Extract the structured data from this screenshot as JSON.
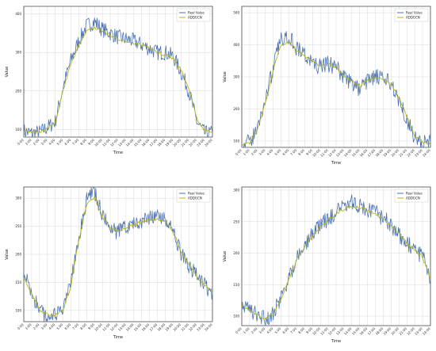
{
  "chart_data": [
    {
      "type": "line",
      "xlabel": "Time",
      "ylabel": "Value",
      "ylim": [
        80,
        420
      ],
      "yticks": [
        100,
        200,
        300,
        400
      ],
      "xticks": [
        "0:00",
        "1:00",
        "2:00",
        "3:00",
        "4:00",
        "5:00",
        "6:00",
        "7:00",
        "8:00",
        "9:00",
        "10:00",
        "11:00",
        "12:00",
        "13:00",
        "14:00",
        "15:00",
        "16:00",
        "17:00",
        "18:00",
        "19:00",
        "20:00",
        "21:00",
        "22:00",
        "23:00",
        "24:00"
      ],
      "grid": true,
      "legend_position": "top-right",
      "series": [
        {
          "name": "Real Value",
          "values": [
            95,
            90,
            92,
            105,
            120,
            210,
            280,
            330,
            370,
            380,
            360,
            350,
            340,
            335,
            330,
            320,
            310,
            300,
            300,
            290,
            250,
            200,
            120,
            90,
            90
          ]
        },
        {
          "name": "ADDGCN",
          "values": [
            95,
            92,
            93,
            102,
            115,
            200,
            270,
            320,
            355,
            365,
            355,
            345,
            335,
            330,
            325,
            318,
            310,
            300,
            295,
            285,
            255,
            205,
            130,
            95,
            92
          ]
        }
      ]
    },
    {
      "type": "line",
      "xlabel": "Time",
      "ylabel": "Value",
      "ylim": [
        80,
        520
      ],
      "yticks": [
        100,
        200,
        300,
        400,
        500
      ],
      "xticks": [
        "0:00",
        "1:00",
        "2:00",
        "3:00",
        "4:00",
        "5:00",
        "6:00",
        "7:00",
        "8:00",
        "9:00",
        "10:00",
        "11:00",
        "12:00",
        "13:00",
        "14:00",
        "15:00",
        "16:00",
        "17:00",
        "18:00",
        "19:00",
        "20:00",
        "21:00",
        "22:00",
        "23:00",
        "24:00"
      ],
      "grid": true,
      "legend_position": "top-right",
      "series": [
        {
          "name": "Real Value",
          "values": [
            90,
            95,
            140,
            230,
            330,
            420,
            430,
            390,
            370,
            340,
            330,
            340,
            330,
            300,
            280,
            260,
            290,
            300,
            290,
            280,
            230,
            170,
            110,
            95,
            95
          ]
        },
        {
          "name": "ADDGCN",
          "values": [
            90,
            95,
            135,
            220,
            320,
            400,
            410,
            385,
            365,
            345,
            335,
            340,
            330,
            305,
            285,
            270,
            290,
            300,
            290,
            275,
            235,
            175,
            115,
            95,
            95
          ]
        }
      ]
    },
    {
      "type": "line",
      "xlabel": "Time",
      "ylabel": "Value",
      "ylim": [
        80,
        320
      ],
      "yticks": [
        100,
        150,
        200,
        250,
        300
      ],
      "xticks": [
        "0:00",
        "1:00",
        "2:00",
        "3:00",
        "4:00",
        "5:00",
        "6:00",
        "7:00",
        "8:00",
        "9:00",
        "10:00",
        "11:00",
        "12:00",
        "13:00",
        "14:00",
        "15:00",
        "16:00",
        "17:00",
        "18:00",
        "19:00",
        "20:00",
        "21:00",
        "22:00",
        "23:00",
        "24:00"
      ],
      "grid": true,
      "legend_position": "top-right",
      "series": [
        {
          "name": "Real Value",
          "values": [
            170,
            130,
            100,
            90,
            90,
            100,
            150,
            230,
            300,
            310,
            270,
            245,
            240,
            250,
            255,
            260,
            265,
            265,
            265,
            240,
            200,
            180,
            160,
            145,
            130
          ]
        },
        {
          "name": "ADDGCN",
          "values": [
            160,
            128,
            100,
            92,
            91,
            100,
            145,
            225,
            290,
            300,
            268,
            248,
            242,
            248,
            252,
            258,
            262,
            262,
            260,
            240,
            205,
            182,
            160,
            145,
            132
          ]
        }
      ]
    },
    {
      "type": "line",
      "xlabel": "Time",
      "ylabel": "Value",
      "ylim": [
        85,
        305
      ],
      "yticks": [
        100,
        150,
        200,
        250,
        300
      ],
      "xticks": [
        "0:00",
        "1:00",
        "2:00",
        "3:00",
        "4:00",
        "5:00",
        "6:00",
        "7:00",
        "8:00",
        "9:00",
        "10:00",
        "11:00",
        "12:00",
        "13:00",
        "14:00",
        "15:00",
        "16:00",
        "17:00",
        "18:00",
        "19:00",
        "20:00",
        "21:00",
        "22:00",
        "23:00",
        "24:00"
      ],
      "grid": true,
      "legend_position": "top-right",
      "series": [
        {
          "name": "Real Value",
          "values": [
            120,
            110,
            100,
            95,
            105,
            130,
            160,
            195,
            210,
            230,
            245,
            255,
            265,
            275,
            280,
            275,
            270,
            265,
            255,
            245,
            230,
            215,
            205,
            195,
            155
          ]
        },
        {
          "name": "ADDGCN",
          "values": [
            118,
            110,
            100,
            97,
            104,
            128,
            158,
            190,
            208,
            228,
            243,
            253,
            262,
            270,
            274,
            272,
            268,
            262,
            253,
            243,
            230,
            216,
            205,
            193,
            160
          ]
        }
      ]
    }
  ],
  "colors": {
    "real": "#4c72b0",
    "pred": "#b5b515"
  }
}
